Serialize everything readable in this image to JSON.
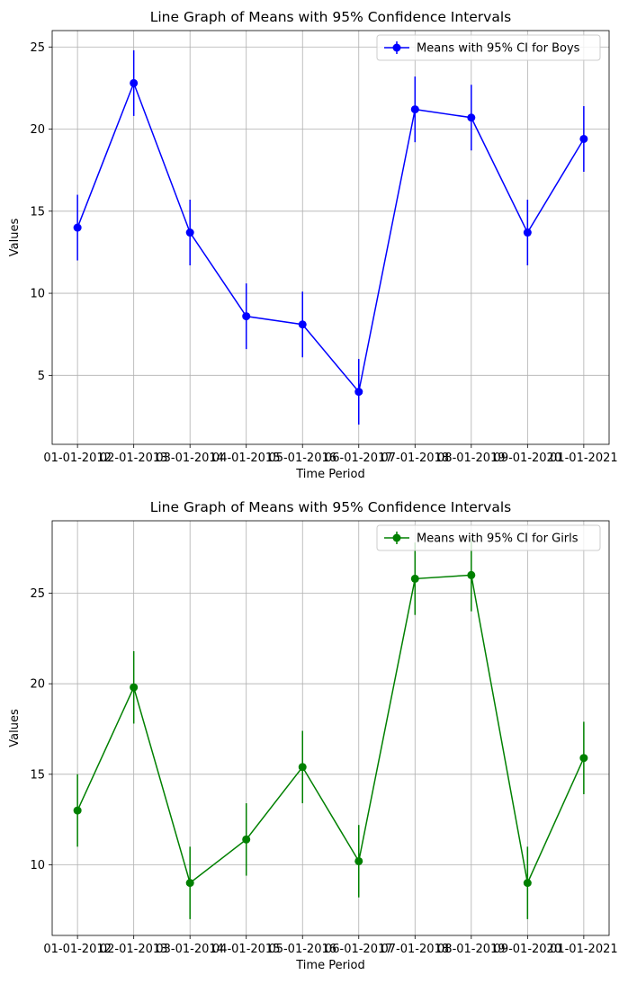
{
  "chart_data": [
    {
      "type": "line",
      "title": "Line Graph of Means with 95% Confidence Intervals",
      "xlabel": "Time Period",
      "ylabel": "Values",
      "categories": [
        "01-01-2012",
        "02-01-2013",
        "03-01-2014",
        "04-01-2015",
        "05-01-2016",
        "06-01-2017",
        "07-01-2018",
        "08-01-2019",
        "09-01-2020",
        "01-01-2021"
      ],
      "series": [
        {
          "name": "Means with 95% CI for Boys",
          "color": "#0000ff",
          "values": [
            14.0,
            22.8,
            13.7,
            8.6,
            8.1,
            4.0,
            21.2,
            20.7,
            13.7,
            19.4
          ],
          "ci_half_width": 2.0
        }
      ],
      "ylim": [
        0.8,
        26.0
      ],
      "yticks": [
        5,
        10,
        15,
        20,
        25
      ],
      "grid": true,
      "legend_position": "top-right"
    },
    {
      "type": "line",
      "title": "Line Graph of Means with 95% Confidence Intervals",
      "xlabel": "Time Period",
      "ylabel": "Values",
      "categories": [
        "01-01-2012",
        "02-01-2013",
        "03-01-2014",
        "04-01-2015",
        "05-01-2016",
        "06-01-2017",
        "07-01-2018",
        "08-01-2019",
        "09-01-2020",
        "01-01-2021"
      ],
      "series": [
        {
          "name": "Means with 95% CI for Girls",
          "color": "#008000",
          "values": [
            13.0,
            19.8,
            9.0,
            11.4,
            15.4,
            10.2,
            25.8,
            26.0,
            9.0,
            15.9
          ],
          "ci_half_width": 2.0
        }
      ],
      "ylim": [
        6.1,
        29.0
      ],
      "yticks": [
        10,
        15,
        20,
        25
      ],
      "grid": true,
      "legend_position": "top-right"
    }
  ]
}
